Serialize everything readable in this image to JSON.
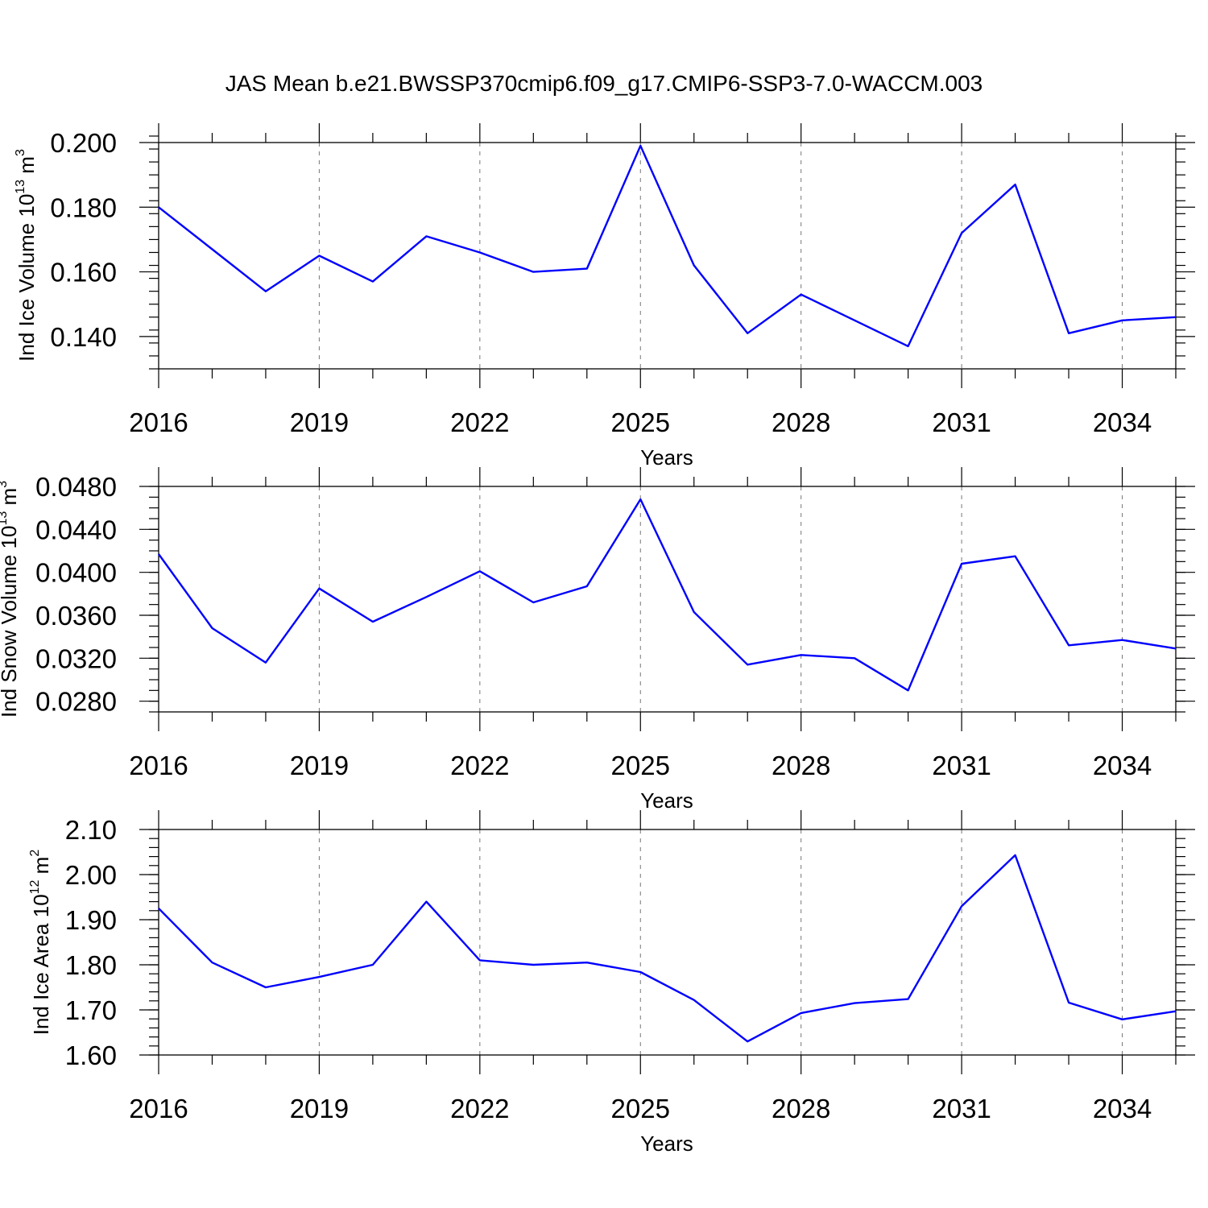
{
  "title": "JAS Mean b.e21.BWSSP370cmip6.f09_g17.CMIP6-SSP3-7.0-WACCM.003",
  "colors": {
    "line": "#0000ff",
    "grid": "#777777",
    "axis": "#000000"
  },
  "chart_data": [
    {
      "type": "line",
      "ylabel": {
        "text": "Ind Ice Volume 10",
        "sup": "13",
        "unit": " m",
        "unit_sup": "3"
      },
      "xlabel": "Years",
      "x": [
        2016,
        2017,
        2018,
        2019,
        2020,
        2021,
        2022,
        2023,
        2024,
        2025,
        2026,
        2027,
        2028,
        2029,
        2030,
        2031,
        2032,
        2033,
        2034,
        2035
      ],
      "values": [
        0.18,
        0.167,
        0.154,
        0.165,
        0.157,
        0.171,
        0.166,
        0.16,
        0.161,
        0.199,
        0.162,
        0.141,
        0.153,
        0.145,
        0.137,
        0.172,
        0.187,
        0.141,
        0.145,
        0.146
      ],
      "xlim": [
        2016,
        2035
      ],
      "ylim": [
        0.13,
        0.2
      ],
      "xticks": [
        2016,
        2019,
        2022,
        2025,
        2028,
        2031,
        2034
      ],
      "xtick_labels": [
        "2016",
        "2019",
        "2022",
        "2025",
        "2028",
        "2031",
        "2034"
      ],
      "yticks": [
        0.14,
        0.16,
        0.18,
        0.2
      ],
      "ytick_labels": [
        "0.140",
        "0.160",
        "0.180",
        "0.200"
      ],
      "minor_y_step": 0.004,
      "grid": "vertical dashed at major x ticks"
    },
    {
      "type": "line",
      "ylabel": {
        "text": "Ind Snow Volume 10",
        "sup": "13",
        "unit": " m",
        "unit_sup": "3"
      },
      "xlabel": "Years",
      "x": [
        2016,
        2017,
        2018,
        2019,
        2020,
        2021,
        2022,
        2023,
        2024,
        2025,
        2026,
        2027,
        2028,
        2029,
        2030,
        2031,
        2032,
        2033,
        2034,
        2035
      ],
      "values": [
        0.0417,
        0.0348,
        0.0316,
        0.0385,
        0.0354,
        0.0377,
        0.0401,
        0.0372,
        0.0387,
        0.0468,
        0.0363,
        0.0314,
        0.0323,
        0.032,
        0.029,
        0.0408,
        0.0415,
        0.0332,
        0.0337,
        0.0329
      ],
      "xlim": [
        2016,
        2035
      ],
      "ylim": [
        0.027,
        0.048
      ],
      "xticks": [
        2016,
        2019,
        2022,
        2025,
        2028,
        2031,
        2034
      ],
      "xtick_labels": [
        "2016",
        "2019",
        "2022",
        "2025",
        "2028",
        "2031",
        "2034"
      ],
      "yticks": [
        0.028,
        0.032,
        0.036,
        0.04,
        0.044,
        0.048
      ],
      "ytick_labels": [
        "0.0280",
        "0.0320",
        "0.0360",
        "0.0400",
        "0.0440",
        "0.0480"
      ],
      "minor_y_step": 0.001,
      "grid": "vertical dashed at major x ticks"
    },
    {
      "type": "line",
      "ylabel": {
        "text": "Ind Ice Area 10",
        "sup": "12",
        "unit": " m",
        "unit_sup": "2"
      },
      "xlabel": "Years",
      "x": [
        2016,
        2017,
        2018,
        2019,
        2020,
        2021,
        2022,
        2023,
        2024,
        2025,
        2026,
        2027,
        2028,
        2029,
        2030,
        2031,
        2032,
        2033,
        2034,
        2035
      ],
      "values": [
        1.925,
        1.805,
        1.75,
        1.773,
        1.8,
        1.94,
        1.81,
        1.8,
        1.805,
        1.784,
        1.722,
        1.63,
        1.693,
        1.715,
        1.724,
        1.93,
        2.043,
        1.716,
        1.679,
        1.697
      ],
      "xlim": [
        2016,
        2035
      ],
      "ylim": [
        1.6,
        2.1
      ],
      "xticks": [
        2016,
        2019,
        2022,
        2025,
        2028,
        2031,
        2034
      ],
      "xtick_labels": [
        "2016",
        "2019",
        "2022",
        "2025",
        "2028",
        "2031",
        "2034"
      ],
      "yticks": [
        1.6,
        1.7,
        1.8,
        1.9,
        2.0,
        2.1
      ],
      "ytick_labels": [
        "1.60",
        "1.70",
        "1.80",
        "1.90",
        "2.00",
        "2.10"
      ],
      "minor_y_step": 0.02,
      "grid": "vertical dashed at major x ticks"
    }
  ]
}
